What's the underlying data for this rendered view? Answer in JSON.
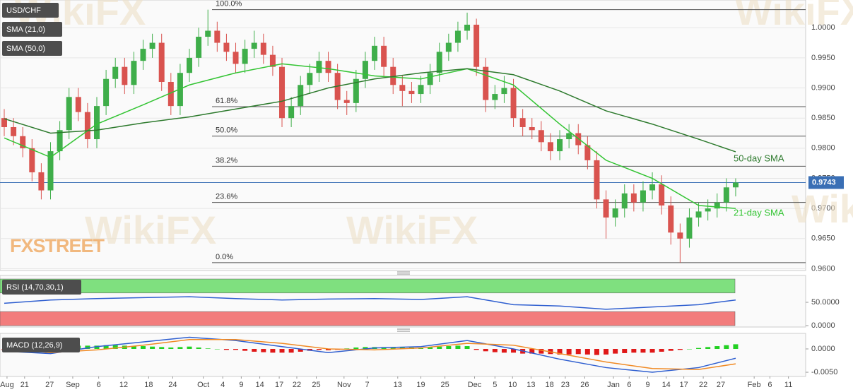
{
  "chart_data": [
    {
      "type": "candlestick",
      "title": "USD/CHF",
      "up_color": "#3fae4a",
      "down_color": "#d9534f",
      "grid": true,
      "watermark": "WikiFX",
      "source": "FXSTREET",
      "xlim": [
        -0.458,
        86.56
      ],
      "ylim": [
        0.9597,
        1.0046
      ],
      "yticks": [
        {
          "value": 0.96,
          "label": "0.9600"
        },
        {
          "value": 0.965,
          "label": "0.9650"
        },
        {
          "value": 0.97,
          "label": "0.9700"
        },
        {
          "value": 0.975,
          "label": "0.9750"
        },
        {
          "value": 0.98,
          "label": "0.9800"
        },
        {
          "value": 0.985,
          "label": "0.9850"
        },
        {
          "value": 0.99,
          "label": "0.9900"
        },
        {
          "value": 0.995,
          "label": "0.9950"
        },
        {
          "value": 1.0,
          "label": "1.0000"
        }
      ],
      "candles": [
        [
          0.985,
          0.9865,
          0.982,
          0.9835
        ],
        [
          0.9835,
          0.985,
          0.9805,
          0.982
        ],
        [
          0.982,
          0.9835,
          0.9785,
          0.98
        ],
        [
          0.98,
          0.9815,
          0.9745,
          0.976
        ],
        [
          0.976,
          0.9775,
          0.9715,
          0.973
        ],
        [
          0.973,
          0.981,
          0.9715,
          0.9795
        ],
        [
          0.9795,
          0.9845,
          0.978,
          0.983
        ],
        [
          0.983,
          0.99,
          0.9815,
          0.9885
        ],
        [
          0.9885,
          0.99,
          0.9845,
          0.986
        ],
        [
          0.986,
          0.9875,
          0.98,
          0.9815
        ],
        [
          0.9815,
          0.9885,
          0.98,
          0.987
        ],
        [
          0.987,
          0.993,
          0.9855,
          0.9915
        ],
        [
          0.9915,
          0.995,
          0.99,
          0.9935
        ],
        [
          0.9935,
          0.995,
          0.989,
          0.9905
        ],
        [
          0.9905,
          0.996,
          0.989,
          0.9945
        ],
        [
          0.9945,
          0.998,
          0.993,
          0.9965
        ],
        [
          0.9965,
          0.999,
          0.995,
          0.9975
        ],
        [
          0.9975,
          0.999,
          0.9895,
          0.991
        ],
        [
          0.991,
          0.9925,
          0.9855,
          0.987
        ],
        [
          0.987,
          0.994,
          0.9855,
          0.9925
        ],
        [
          0.9925,
          0.9965,
          0.991,
          0.995
        ],
        [
          0.995,
          1.0,
          0.9935,
          0.9985
        ],
        [
          0.9985,
          1.003,
          0.997,
          0.9995
        ],
        [
          0.9995,
          1.001,
          0.996,
          0.9975
        ],
        [
          0.9975,
          0.999,
          0.9945,
          0.996
        ],
        [
          0.996,
          0.9975,
          0.9925,
          0.994
        ],
        [
          0.994,
          0.998,
          0.9925,
          0.9965
        ],
        [
          0.9965,
          0.9995,
          0.995,
          0.9975
        ],
        [
          0.9975,
          0.999,
          0.994,
          0.9955
        ],
        [
          0.9955,
          0.997,
          0.992,
          0.9935
        ],
        [
          0.9935,
          0.995,
          0.9835,
          0.985
        ],
        [
          0.985,
          0.9885,
          0.9835,
          0.987
        ],
        [
          0.987,
          0.992,
          0.9855,
          0.9905
        ],
        [
          0.9905,
          0.994,
          0.989,
          0.9925
        ],
        [
          0.9925,
          0.996,
          0.991,
          0.9945
        ],
        [
          0.9945,
          0.996,
          0.991,
          0.9925
        ],
        [
          0.9925,
          0.994,
          0.9865,
          0.988
        ],
        [
          0.988,
          0.9895,
          0.9855,
          0.9875
        ],
        [
          0.9875,
          0.993,
          0.986,
          0.9915
        ],
        [
          0.9915,
          0.996,
          0.99,
          0.9945
        ],
        [
          0.9945,
          0.9985,
          0.993,
          0.997
        ],
        [
          0.997,
          0.9985,
          0.992,
          0.9935
        ],
        [
          0.9935,
          0.995,
          0.989,
          0.9905
        ],
        [
          0.9905,
          0.992,
          0.987,
          0.9895
        ],
        [
          0.9895,
          0.991,
          0.9875,
          0.989
        ],
        [
          0.989,
          0.992,
          0.9875,
          0.9905
        ],
        [
          0.9905,
          0.994,
          0.989,
          0.9925
        ],
        [
          0.9925,
          0.9975,
          0.991,
          0.996
        ],
        [
          0.996,
          0.999,
          0.9945,
          0.9975
        ],
        [
          0.9975,
          1.001,
          0.996,
          0.9995
        ],
        [
          0.9995,
          1.0025,
          0.998,
          1.0005
        ],
        [
          1.0005,
          1.0015,
          0.992,
          0.9935
        ],
        [
          0.9935,
          0.995,
          0.986,
          0.988
        ],
        [
          0.988,
          0.9905,
          0.9865,
          0.989
        ],
        [
          0.989,
          0.992,
          0.9875,
          0.99
        ],
        [
          0.99,
          0.9915,
          0.9835,
          0.985
        ],
        [
          0.985,
          0.9865,
          0.982,
          0.9835
        ],
        [
          0.9835,
          0.985,
          0.9815,
          0.983
        ],
        [
          0.983,
          0.9845,
          0.9795,
          0.981
        ],
        [
          0.981,
          0.9825,
          0.978,
          0.9795
        ],
        [
          0.9795,
          0.983,
          0.978,
          0.9815
        ],
        [
          0.9815,
          0.984,
          0.98,
          0.9825
        ],
        [
          0.9825,
          0.984,
          0.979,
          0.9805
        ],
        [
          0.9805,
          0.982,
          0.9765,
          0.978
        ],
        [
          0.978,
          0.9795,
          0.97,
          0.9715
        ],
        [
          0.9715,
          0.973,
          0.965,
          0.9685
        ],
        [
          0.9685,
          0.9715,
          0.967,
          0.97
        ],
        [
          0.97,
          0.974,
          0.9685,
          0.9725
        ],
        [
          0.9725,
          0.974,
          0.9695,
          0.971
        ],
        [
          0.971,
          0.9745,
          0.9695,
          0.973
        ],
        [
          0.973,
          0.976,
          0.9715,
          0.974
        ],
        [
          0.974,
          0.9755,
          0.969,
          0.9705
        ],
        [
          0.9705,
          0.972,
          0.964,
          0.966
        ],
        [
          0.966,
          0.9675,
          0.961,
          0.965
        ],
        [
          0.965,
          0.97,
          0.9635,
          0.9685
        ],
        [
          0.9685,
          0.971,
          0.967,
          0.9695
        ],
        [
          0.9695,
          0.9715,
          0.968,
          0.97
        ],
        [
          0.97,
          0.9725,
          0.9685,
          0.971
        ],
        [
          0.971,
          0.975,
          0.9695,
          0.9735
        ],
        [
          0.9735,
          0.975,
          0.972,
          0.9743
        ]
      ],
      "series": [
        {
          "name": "SMA (21,0)",
          "color": "#33c433",
          "x": [
            0,
            5,
            10,
            15,
            20,
            25,
            30,
            35,
            40,
            45,
            50,
            55,
            60,
            65,
            70,
            75,
            79
          ],
          "values": [
            0.9817,
            0.9785,
            0.984,
            0.9872,
            0.9905,
            0.9925,
            0.994,
            0.9932,
            0.992,
            0.9915,
            0.9932,
            0.9905,
            0.984,
            0.978,
            0.975,
            0.9705,
            0.97
          ]
        },
        {
          "name": "SMA (50,0)",
          "color": "#2d7a2d",
          "x": [
            0,
            5,
            10,
            15,
            20,
            25,
            30,
            35,
            40,
            45,
            50,
            55,
            60,
            65,
            70,
            75,
            79
          ],
          "values": [
            0.9849,
            0.9825,
            0.983,
            0.9842,
            0.9852,
            0.9865,
            0.9878,
            0.99,
            0.9915,
            0.9925,
            0.9932,
            0.9922,
            0.9895,
            0.9862,
            0.984,
            0.9815,
            0.9794
          ]
        }
      ],
      "levels": [
        {
          "label": "100.0%",
          "value": 1.003
        },
        {
          "label": "61.8%",
          "value": 0.9869
        },
        {
          "label": "50.0%",
          "value": 0.982
        },
        {
          "label": "38.2%",
          "value": 0.977
        },
        {
          "label": "23.6%",
          "value": 0.971
        },
        {
          "label": "0.0%",
          "value": 0.961
        }
      ],
      "last_price": {
        "value": 0.9743,
        "label": "0.9743"
      },
      "annotations": [
        {
          "text": "50-day SMA",
          "color": "#2d7a2d"
        },
        {
          "text": "21-day SMA",
          "color": "#33c433"
        }
      ]
    },
    {
      "type": "line",
      "title": "RSI (14,70,30,1)",
      "xlim": [
        -0.458,
        86.56
      ],
      "ylim": [
        -3,
        107.6
      ],
      "yticks": [
        {
          "value": 50,
          "label": "50.0000"
        },
        {
          "value": 0,
          "label": "0.0000"
        }
      ],
      "upper_band": [
        70,
        100
      ],
      "lower_band": [
        0,
        30
      ],
      "band_colors": [
        "#7fe07f",
        "#f27c7c"
      ],
      "series": [
        {
          "color": "#2f5fd0",
          "x": [
            0,
            5,
            10,
            15,
            20,
            25,
            30,
            35,
            40,
            45,
            50,
            55,
            60,
            65,
            70,
            75,
            79
          ],
          "values": [
            48,
            55,
            58,
            60,
            62,
            58,
            55,
            57,
            58,
            56,
            62,
            45,
            42,
            35,
            40,
            45,
            55
          ]
        }
      ]
    },
    {
      "type": "macd",
      "title": "MACD (12,26,9)",
      "xlim": [
        -0.458,
        86.56
      ],
      "ylim": [
        -0.0059,
        0.00333
      ],
      "yticks": [
        {
          "value": 0,
          "label": "0.0000"
        },
        {
          "value": -0.005,
          "label": "-0.0050"
        }
      ],
      "up_color": "#22d022",
      "down_color": "#e01818",
      "histogram": [
        -0.0003,
        -0.0003,
        -0.0002,
        -0.0002,
        -0.0002,
        0.0001,
        0.0003,
        0.0005,
        0.0007,
        0.0007,
        0.0007,
        0.0008,
        0.0008,
        0.0007,
        0.0006,
        0.0006,
        0.0005,
        0.0004,
        0.0003,
        0.0004,
        0.0005,
        0.0003,
        0.0001,
        0,
        -0.0002,
        -0.0002,
        -0.0004,
        -0.0006,
        -0.0007,
        -0.0008,
        -0.0008,
        -0.0008,
        -0.0006,
        -0.0004,
        -0.0002,
        -0.0003,
        -0.0002,
        0.0001,
        0.0003,
        0.0004,
        0.0004,
        0.0004,
        0.0003,
        0.0003,
        0.0003,
        0.0003,
        0.0004,
        0.0005,
        0.0006,
        0.0007,
        0.0006,
        -0.0002,
        -0.0005,
        -0.0007,
        -0.0008,
        -0.0008,
        -0.001,
        -0.001,
        -0.001,
        -0.0011,
        -0.0012,
        -0.0012,
        -0.0011,
        -0.0012,
        -0.0013,
        -0.0012,
        -0.001,
        -0.0009,
        -0.0008,
        -0.0008,
        -0.0008,
        -0.0006,
        -0.0004,
        -0.0002,
        0,
        0.0002,
        0.0004,
        0.0006,
        0.0008,
        0.001
      ],
      "series": [
        {
          "color": "#2f5fd0",
          "x": [
            0,
            5,
            10,
            15,
            20,
            25,
            30,
            35,
            40,
            45,
            50,
            55,
            60,
            65,
            70,
            75,
            79
          ],
          "values": [
            -0.0005,
            -0.001,
            0.0005,
            0.0015,
            0.0025,
            0.0018,
            0.0005,
            -0.0008,
            0.0002,
            0.0005,
            0.0018,
            0,
            -0.0022,
            -0.004,
            -0.005,
            -0.004,
            -0.002
          ]
        },
        {
          "color": "#f08a24",
          "x": [
            0,
            5,
            10,
            15,
            20,
            25,
            30,
            35,
            40,
            45,
            50,
            55,
            60,
            65,
            70,
            75,
            79
          ],
          "values": [
            0,
            -0.0008,
            -0.0002,
            0.0008,
            0.002,
            0.002,
            0.0012,
            0,
            -0.0002,
            0.0002,
            0.0012,
            0.0008,
            -0.001,
            -0.0028,
            -0.0042,
            -0.0044,
            -0.0032
          ]
        }
      ],
      "xticks": [
        {
          "value": 0.3,
          "label": "Aug"
        },
        {
          "value": 2.2,
          "label": "21"
        },
        {
          "value": 4.9,
          "label": "27"
        },
        {
          "value": 7.4,
          "label": "Sep"
        },
        {
          "value": 10.2,
          "label": "6"
        },
        {
          "value": 12.9,
          "label": "12"
        },
        {
          "value": 15.6,
          "label": "18"
        },
        {
          "value": 18.2,
          "label": "24"
        },
        {
          "value": 21.5,
          "label": "Oct"
        },
        {
          "value": 23.6,
          "label": "4"
        },
        {
          "value": 25.6,
          "label": "9"
        },
        {
          "value": 27.6,
          "label": "14"
        },
        {
          "value": 29.7,
          "label": "17"
        },
        {
          "value": 31.6,
          "label": "22"
        },
        {
          "value": 33.7,
          "label": "25"
        },
        {
          "value": 36.7,
          "label": "Nov"
        },
        {
          "value": 39.2,
          "label": "7"
        },
        {
          "value": 42.5,
          "label": "13"
        },
        {
          "value": 45,
          "label": "19"
        },
        {
          "value": 47.6,
          "label": "25"
        },
        {
          "value": 50.8,
          "label": "Dec"
        },
        {
          "value": 53,
          "label": "5"
        },
        {
          "value": 54.9,
          "label": "10"
        },
        {
          "value": 56.9,
          "label": "13"
        },
        {
          "value": 58.9,
          "label": "18"
        },
        {
          "value": 60.6,
          "label": "23"
        },
        {
          "value": 62.7,
          "label": "26"
        },
        {
          "value": 65.8,
          "label": "Jan"
        },
        {
          "value": 67.5,
          "label": "6"
        },
        {
          "value": 69.5,
          "label": "9"
        },
        {
          "value": 71.5,
          "label": "14"
        },
        {
          "value": 73.4,
          "label": "17"
        },
        {
          "value": 75.5,
          "label": "22"
        },
        {
          "value": 77.4,
          "label": "27"
        },
        {
          "value": 81,
          "label": "Feb"
        },
        {
          "value": 82.7,
          "label": "6"
        },
        {
          "value": 84.7,
          "label": "11"
        }
      ]
    }
  ]
}
